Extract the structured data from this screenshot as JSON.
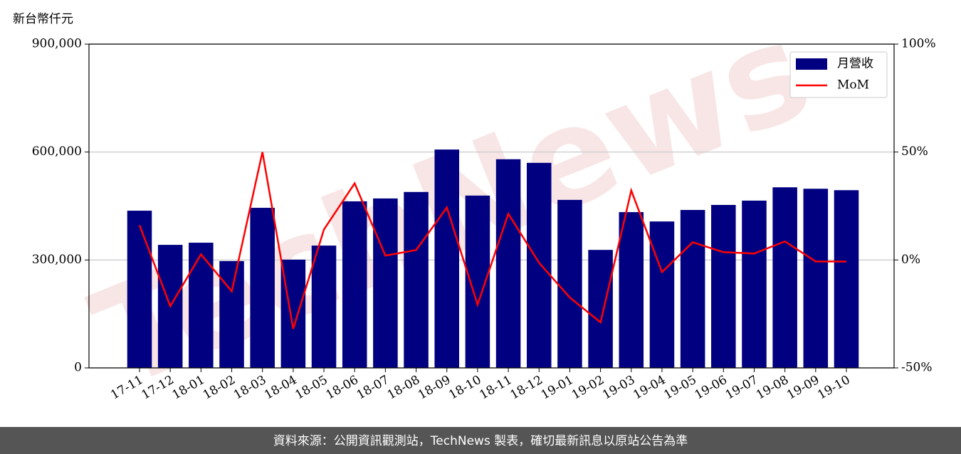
{
  "chart_data": {
    "type": "bar",
    "y_unit_label": "新台幣仟元",
    "watermark": "TechNews",
    "footer": "資料來源：公開資訊觀測站，TechNews 製表，確切最新訊息以原站公告為準",
    "categories": [
      "17-11",
      "17-12",
      "18-01",
      "18-02",
      "18-03",
      "18-04",
      "18-05",
      "18-06",
      "18-07",
      "18-08",
      "18-09",
      "18-10",
      "18-11",
      "18-12",
      "19-01",
      "19-02",
      "19-03",
      "19-04",
      "19-05",
      "19-06",
      "19-07",
      "19-08",
      "19-09",
      "19-10"
    ],
    "series": [
      {
        "name": "月營收",
        "type": "bar",
        "color": "#000080",
        "values": [
          437000,
          342000,
          348000,
          297000,
          445000,
          301000,
          340000,
          463000,
          471000,
          489000,
          607000,
          479000,
          580000,
          570000,
          467000,
          328000,
          433000,
          407000,
          439000,
          453000,
          465000,
          502000,
          498000,
          494000
        ]
      },
      {
        "name": "MoM",
        "type": "line",
        "axis": "y2",
        "color": "#ff0000",
        "values": [
          16.1,
          -21.4,
          2.6,
          -14.5,
          50,
          -31.9,
          14.1,
          35.5,
          2.0,
          4.6,
          24.3,
          -20.7,
          21.4,
          -1.3,
          -17.4,
          -28.9,
          32.2,
          -5.6,
          8.2,
          3.6,
          3.0,
          8.6,
          -0.7,
          -0.7
        ]
      }
    ],
    "ylim": [
      0,
      900000
    ],
    "yticks": [
      0,
      {
        "value": 300000,
        "label": "300,000"
      },
      {
        "value": 600000,
        "label": "600,000"
      },
      {
        "value": 900000,
        "label": "900,000"
      }
    ],
    "y2lim": [
      -50,
      100
    ],
    "y2ticks": [
      {
        "value": -50,
        "label": "-50%"
      },
      {
        "value": 0,
        "label": "0%"
      },
      {
        "value": 50,
        "label": "50%"
      },
      {
        "value": 100,
        "label": "100%"
      }
    ],
    "grid": true,
    "legend": "upper right"
  }
}
